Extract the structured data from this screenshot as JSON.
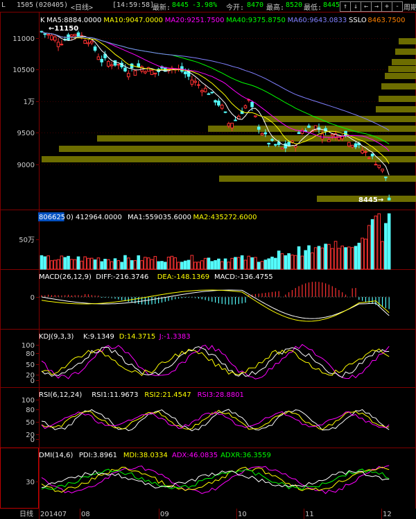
{
  "header": {
    "symbol": "1505",
    "code": "(020405)",
    "period": "<日线>",
    "time": "[14:59:58]",
    "latest_label": "最新:",
    "latest_value": "8445",
    "change_value": "-3.98%",
    "open_label": "今开:",
    "open_value": "8470",
    "high_label": "最高:",
    "high_value": "8520",
    "low_label": "最低:",
    "low_value": "8445",
    "toolbar": {
      "buttons": [
        "↑",
        "↓",
        "←",
        "→",
        "+",
        "-",
        "→|"
      ],
      "period_label": "周期"
    },
    "left_mark": "L"
  },
  "panels": {
    "price": {
      "indicators": [
        {
          "text": "K",
          "color": "#ffffff"
        },
        {
          "text": "MA5:8884.0000",
          "color": "#ffffff"
        },
        {
          "text": "MA10:9047.0000",
          "color": "#ffff00"
        },
        {
          "text": "MA20:9251.7500",
          "color": "#ff00ff"
        },
        {
          "text": "MA40:9375.8750",
          "color": "#00ff00"
        },
        {
          "text": "MA60:9643.0833",
          "color": "#8080ff"
        },
        {
          "text": "SSLO",
          "color": "#ffffff"
        },
        {
          "text": "8463.7500",
          "color": "#ff8000"
        }
      ],
      "y_labels": [
        "11000",
        "10500",
        "1万",
        "9500",
        "9000"
      ],
      "high_marker": "11150",
      "low_marker": "8445"
    },
    "volume": {
      "indicators": [
        {
          "text": "806625",
          "color": "#ffffff",
          "highlight": true
        },
        {
          "text": "0) 412964.0000",
          "color": "#ffffff"
        },
        {
          "text": "MA1:559035.6000",
          "color": "#ffffff"
        },
        {
          "text": "MA2:435272.6000",
          "color": "#ffff00"
        }
      ],
      "y_labels": [
        "50万"
      ]
    },
    "macd": {
      "indicators": [
        {
          "text": "MACD(26,12,9)",
          "color": "#ffffff"
        },
        {
          "text": "DIFF:-216.3746",
          "color": "#ffffff"
        },
        {
          "text": "DEA:-148.1369",
          "color": "#ffff00"
        },
        {
          "text": "MACD:-136.4755",
          "color": "#ffffff"
        }
      ],
      "y_labels": [
        "0"
      ]
    },
    "kdj": {
      "indicators": [
        {
          "text": "KDJ(9,3,3)",
          "color": "#ffffff"
        },
        {
          "text": "K:9.1349",
          "color": "#ffffff"
        },
        {
          "text": "D:14.3715",
          "color": "#ffff00"
        },
        {
          "text": "J:-1.3383",
          "color": "#ff00ff"
        }
      ],
      "y_labels": [
        "100",
        "80",
        "50",
        "20",
        "0"
      ]
    },
    "rsi": {
      "indicators": [
        {
          "text": "RSI(6,12,24)",
          "color": "#ffffff"
        },
        {
          "text": "RSI1:11.9673",
          "color": "#ffffff"
        },
        {
          "text": "RSI2:21.4547",
          "color": "#ffff00"
        },
        {
          "text": "RSI3:28.8801",
          "color": "#ff00ff"
        }
      ],
      "y_labels": [
        "100",
        "80",
        "50",
        "20",
        "0"
      ]
    },
    "dmi": {
      "indicators": [
        {
          "text": "DMI(14,6)",
          "color": "#ffffff"
        },
        {
          "text": "PDI:3.8961",
          "color": "#ffffff"
        },
        {
          "text": "MDI:38.0334",
          "color": "#ffff00"
        },
        {
          "text": "ADX:46.0835",
          "color": "#ff00ff"
        },
        {
          "text": "ADXR:36.3559",
          "color": "#00ff00"
        }
      ],
      "y_labels": [
        "30"
      ]
    }
  },
  "x_axis": {
    "period_label": "日线",
    "labels": [
      "201407",
      "08",
      "09",
      "10",
      "11",
      "12"
    ]
  },
  "colors": {
    "up": "#ff3232",
    "down": "#54fcfc",
    "grid": "#800000",
    "volume_profile": "#808000"
  }
}
